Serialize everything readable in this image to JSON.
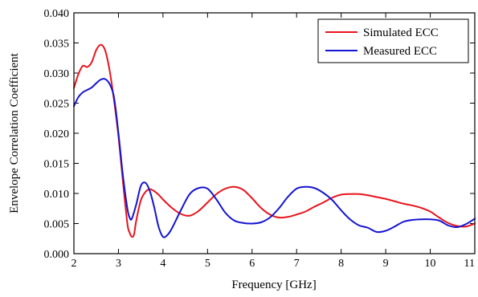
{
  "chart_data": {
    "type": "line",
    "title": "",
    "xlabel": "Frequency [GHz]",
    "ylabel": "Envelope Correlation Coefficient",
    "xlim": [
      2,
      11
    ],
    "ylim": [
      0,
      0.04
    ],
    "xticks": [
      2,
      3,
      4,
      5,
      6,
      7,
      8,
      9,
      10,
      11
    ],
    "yticks": [
      0,
      0.005,
      0.01,
      0.015,
      0.02,
      0.025,
      0.03,
      0.035,
      0.04
    ],
    "xtick_labels": [
      "2",
      "3",
      "4",
      "5",
      "6",
      "7",
      "8",
      "9",
      "10",
      "11"
    ],
    "ytick_labels": [
      "0.000",
      "0.005",
      "0.010",
      "0.015",
      "0.020",
      "0.025",
      "0.030",
      "0.035",
      "0.040"
    ],
    "grid": false,
    "legend_position": "top-right",
    "series": [
      {
        "name": "Simulated ECC",
        "color": "#e8141c",
        "x": [
          2.0,
          2.1,
          2.2,
          2.3,
          2.4,
          2.5,
          2.6,
          2.7,
          2.8,
          2.9,
          3.0,
          3.1,
          3.2,
          3.25,
          3.3,
          3.35,
          3.4,
          3.5,
          3.6,
          3.7,
          3.8,
          3.9,
          4.0,
          4.2,
          4.4,
          4.6,
          4.8,
          5.0,
          5.2,
          5.4,
          5.6,
          5.8,
          6.0,
          6.2,
          6.4,
          6.6,
          6.8,
          7.0,
          7.2,
          7.4,
          7.6,
          7.8,
          8.0,
          8.2,
          8.4,
          8.6,
          8.8,
          9.0,
          9.2,
          9.4,
          9.6,
          9.8,
          10.0,
          10.2,
          10.4,
          10.6,
          10.8,
          11.0
        ],
        "y": [
          0.0275,
          0.0298,
          0.0312,
          0.031,
          0.0318,
          0.0338,
          0.0347,
          0.0338,
          0.0305,
          0.0255,
          0.0195,
          0.012,
          0.005,
          0.0035,
          0.0028,
          0.0032,
          0.0055,
          0.0088,
          0.0102,
          0.0107,
          0.0104,
          0.0098,
          0.009,
          0.0076,
          0.0066,
          0.0063,
          0.0071,
          0.0085,
          0.0099,
          0.0108,
          0.0111,
          0.0106,
          0.0092,
          0.0076,
          0.0065,
          0.006,
          0.0061,
          0.0065,
          0.007,
          0.0078,
          0.0085,
          0.0093,
          0.0098,
          0.0099,
          0.0099,
          0.0097,
          0.0094,
          0.0091,
          0.0087,
          0.0083,
          0.008,
          0.0076,
          0.007,
          0.006,
          0.0051,
          0.0046,
          0.0045,
          0.005
        ]
      },
      {
        "name": "Measured ECC",
        "color": "#1414d2",
        "x": [
          2.0,
          2.1,
          2.2,
          2.3,
          2.4,
          2.5,
          2.6,
          2.7,
          2.8,
          2.9,
          3.0,
          3.1,
          3.2,
          3.25,
          3.3,
          3.4,
          3.5,
          3.6,
          3.7,
          3.8,
          3.9,
          4.0,
          4.1,
          4.2,
          4.4,
          4.6,
          4.8,
          5.0,
          5.2,
          5.4,
          5.6,
          5.8,
          6.0,
          6.2,
          6.4,
          6.6,
          6.8,
          7.0,
          7.2,
          7.4,
          7.6,
          7.8,
          8.0,
          8.2,
          8.4,
          8.6,
          8.8,
          9.0,
          9.2,
          9.4,
          9.6,
          9.8,
          10.0,
          10.2,
          10.4,
          10.6,
          10.8,
          11.0
        ],
        "y": [
          0.0245,
          0.026,
          0.0268,
          0.0272,
          0.0276,
          0.0283,
          0.0289,
          0.029,
          0.0282,
          0.026,
          0.02,
          0.013,
          0.0075,
          0.006,
          0.0058,
          0.0082,
          0.0112,
          0.0118,
          0.0105,
          0.0078,
          0.0045,
          0.0028,
          0.0031,
          0.0042,
          0.0072,
          0.0099,
          0.0109,
          0.0108,
          0.009,
          0.0068,
          0.0055,
          0.0051,
          0.005,
          0.0052,
          0.006,
          0.0075,
          0.0094,
          0.0108,
          0.0111,
          0.0109,
          0.0101,
          0.0089,
          0.0072,
          0.0057,
          0.0047,
          0.0043,
          0.0036,
          0.0038,
          0.0045,
          0.0053,
          0.0056,
          0.0057,
          0.0057,
          0.0055,
          0.0047,
          0.0044,
          0.0049,
          0.0058
        ]
      }
    ]
  }
}
